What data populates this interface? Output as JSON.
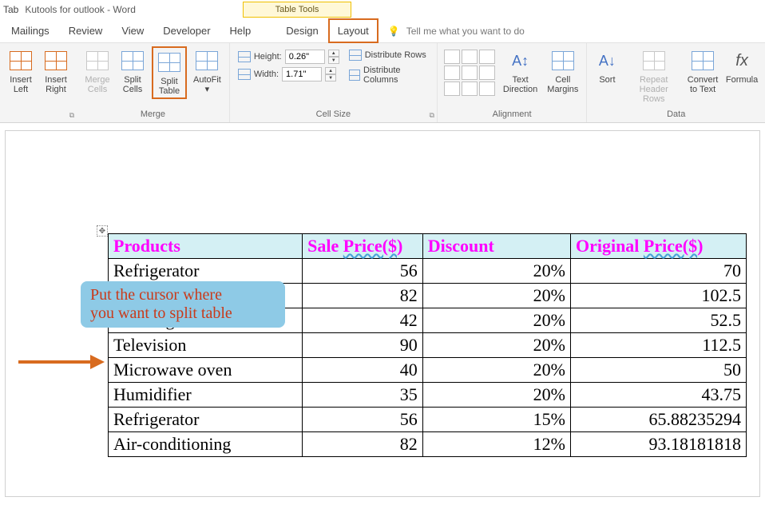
{
  "title": {
    "tab": "Tab",
    "doc": "Kutools for outlook  -  Word"
  },
  "table_tools_label": "Table Tools",
  "menu": {
    "items": [
      "Mailings",
      "Review",
      "View",
      "Developer",
      "Help",
      "Design",
      "Layout"
    ],
    "highlight_index": 6,
    "tell_me": "Tell me what you want to do"
  },
  "ribbon": {
    "insert_left": "Insert\nLeft",
    "insert_right": "Insert\nRight",
    "merge_cells": "Merge\nCells",
    "split_cells": "Split\nCells",
    "split_table": "Split\nTable",
    "autofit": "AutoFit",
    "height_label": "Height:",
    "width_label": "Width:",
    "height_value": "0.26\"",
    "width_value": "1.71\"",
    "dist_rows": "Distribute Rows",
    "dist_cols": "Distribute Columns",
    "text_direction": "Text\nDirection",
    "cell_margins": "Cell\nMargins",
    "sort": "Sort",
    "repeat_header": "Repeat\nHeader Rows",
    "convert": "Convert\nto Text",
    "formula": "Formula",
    "group_merge": "Merge",
    "group_cellsize": "Cell Size",
    "group_align": "Alignment",
    "group_data": "Data"
  },
  "callout": {
    "line1": "Put the cursor where",
    "line2": "you want to split table"
  },
  "table": {
    "headers": [
      "Products",
      "Sale Price($)",
      "Discount",
      "Original Price($)"
    ],
    "header_bg": "#d4f0f4",
    "header_color": "#ff00ff",
    "rows": [
      [
        "Refrigerator",
        "56",
        "20%",
        "70"
      ],
      [
        "",
        "82",
        "20%",
        "102.5"
      ],
      [
        "Washing machine",
        "42",
        "20%",
        "52.5"
      ],
      [
        "Television",
        "90",
        "20%",
        "112.5"
      ],
      [
        "Microwave oven",
        "40",
        "20%",
        "50"
      ],
      [
        "Humidifier",
        "35",
        "20%",
        "43.75"
      ],
      [
        "Refrigerator",
        "56",
        "15%",
        "65.88235294"
      ],
      [
        "Air-conditioning",
        "82",
        "12%",
        "93.18181818"
      ]
    ],
    "col_widths": [
      "210px",
      "130px",
      "160px",
      "190px"
    ]
  }
}
